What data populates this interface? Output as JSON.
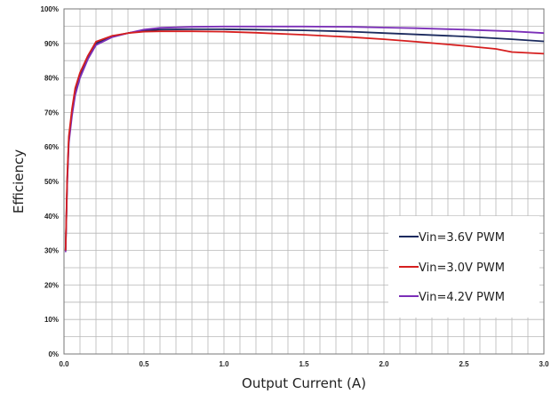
{
  "chart_data": {
    "type": "line",
    "title": "",
    "xlabel": "Output Current (A)",
    "ylabel": "Efficiency",
    "xlim": [
      0,
      3.0
    ],
    "ylim": [
      0,
      100
    ],
    "x_ticks": [
      0.0,
      0.5,
      1.0,
      1.5,
      2.0,
      2.5,
      3.0
    ],
    "x_tick_labels": [
      "0.0",
      "0.5",
      "1.0",
      "1.5",
      "2.0",
      "2.5",
      "3.0"
    ],
    "y_ticks": [
      0,
      10,
      20,
      30,
      40,
      50,
      60,
      70,
      80,
      90,
      100
    ],
    "y_tick_labels": [
      "0%",
      "10%",
      "20%",
      "30%",
      "40%",
      "50%",
      "60%",
      "70%",
      "80%",
      "90%",
      "100%"
    ],
    "grid": true,
    "legend_position": "bottom-right",
    "series": [
      {
        "name": "Vin=3.6V PWM",
        "color": "#1b2a5e",
        "x": [
          0.01,
          0.02,
          0.03,
          0.05,
          0.07,
          0.1,
          0.15,
          0.2,
          0.3,
          0.4,
          0.5,
          0.6,
          0.8,
          1.0,
          1.2,
          1.5,
          1.8,
          2.0,
          2.2,
          2.5,
          2.8,
          3.0
        ],
        "y": [
          30,
          50,
          62,
          70,
          76,
          81,
          86,
          90,
          92,
          93,
          93.7,
          94,
          94.1,
          94.1,
          94,
          93.8,
          93.4,
          93,
          92.6,
          92,
          91.2,
          90.6
        ]
      },
      {
        "name": "Vin=3.0V PWM",
        "color": "#d61f1f",
        "x": [
          0.01,
          0.02,
          0.03,
          0.05,
          0.07,
          0.1,
          0.15,
          0.2,
          0.3,
          0.4,
          0.5,
          0.6,
          0.8,
          1.0,
          1.2,
          1.5,
          1.8,
          2.0,
          2.2,
          2.5,
          2.7,
          2.8,
          3.0
        ],
        "y": [
          30,
          51,
          63,
          71,
          77,
          81.5,
          86.5,
          90.5,
          92.2,
          93,
          93.4,
          93.5,
          93.5,
          93.4,
          93.1,
          92.5,
          91.8,
          91.2,
          90.5,
          89.3,
          88.4,
          87.5,
          87
        ]
      },
      {
        "name": "Vin=4.2V PWM",
        "color": "#7b2fb8",
        "x": [
          0.01,
          0.02,
          0.03,
          0.05,
          0.07,
          0.1,
          0.15,
          0.2,
          0.3,
          0.4,
          0.5,
          0.6,
          0.8,
          1.0,
          1.2,
          1.5,
          1.8,
          2.0,
          2.2,
          2.5,
          2.8,
          3.0
        ],
        "y": [
          29.5,
          49,
          61,
          69,
          75,
          80,
          85.5,
          89.5,
          91.8,
          93,
          94,
          94.5,
          94.8,
          94.9,
          94.9,
          94.9,
          94.8,
          94.6,
          94.4,
          94,
          93.5,
          93
        ]
      }
    ]
  }
}
